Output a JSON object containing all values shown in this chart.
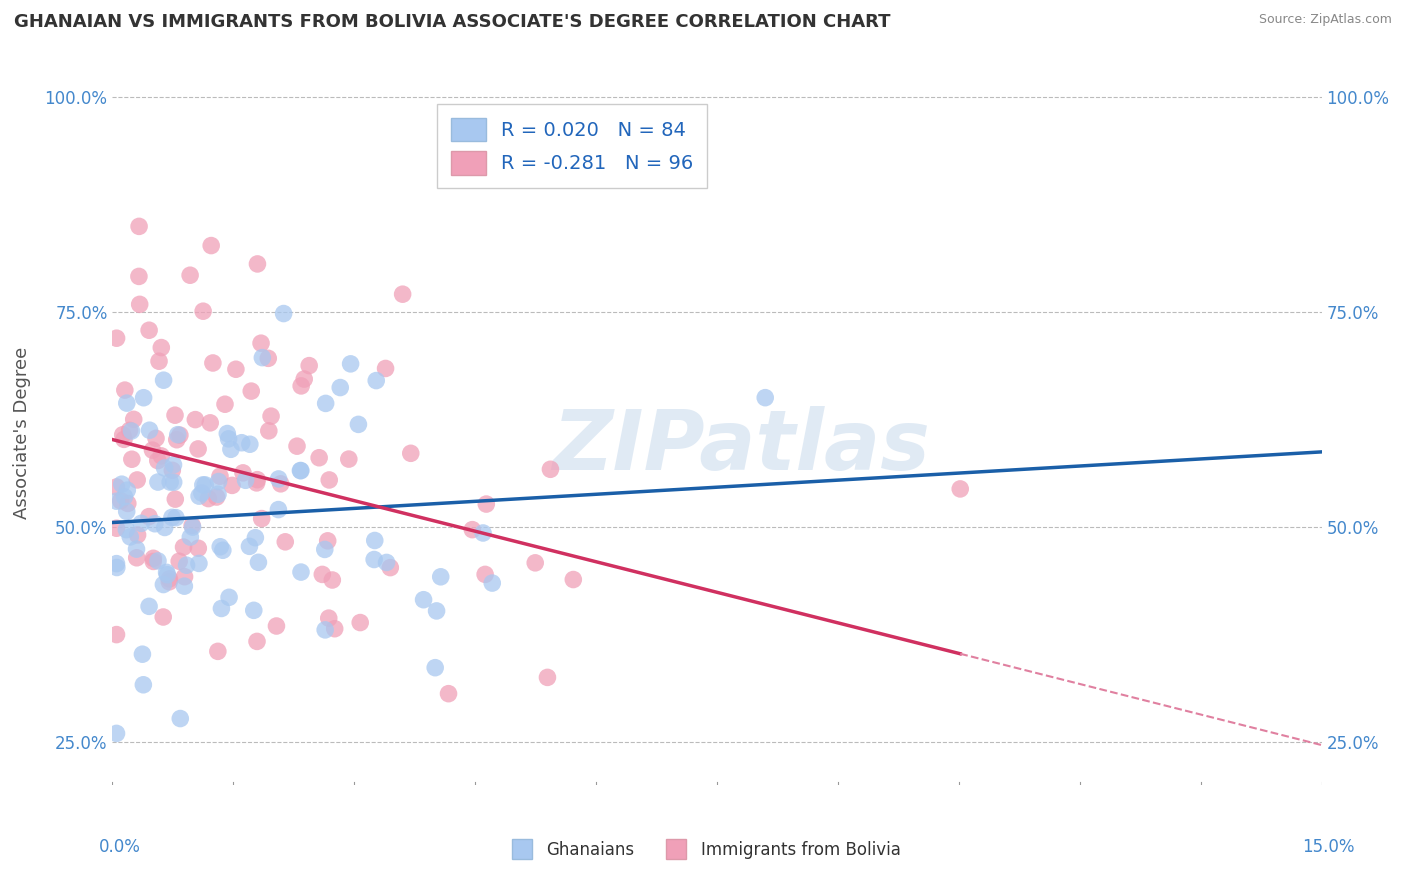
{
  "title": "GHANAIAN VS IMMIGRANTS FROM BOLIVIA ASSOCIATE'S DEGREE CORRELATION CHART",
  "source_text": "Source: ZipAtlas.com",
  "ylabel": "Associate's Degree",
  "x_min": 0.0,
  "x_max": 15.0,
  "y_min": 25.0,
  "y_max": 100.0,
  "y_ticks": [
    25.0,
    50.0,
    75.0,
    100.0
  ],
  "legend_labels": [
    "Ghanaians",
    "Immigrants from Bolivia"
  ],
  "R_blue": 0.02,
  "N_blue": 84,
  "R_pink": -0.281,
  "N_pink": 96,
  "blue_color": "#A8C8F0",
  "pink_color": "#F0A0B8",
  "blue_line_color": "#1A5FA8",
  "pink_line_color": "#D03060",
  "pink_dash_color": "#E080A0",
  "watermark": "ZIPatlas",
  "title_fontsize": 13,
  "label_fontsize": 12,
  "legend_fontsize": 14,
  "seed_blue": 777,
  "seed_pink": 999
}
